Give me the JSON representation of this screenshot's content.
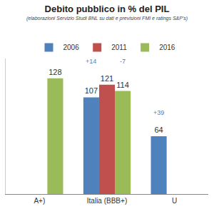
{
  "chart_data": {
    "type": "bar",
    "title": "Debito pubblico in % del PIL",
    "subtitle": "(elaborazioni Servizio Studi BNL su dati e previsioni FMI e ratings S&P's)",
    "categories": [
      "A+)",
      "Italia (BBB+)",
      "U"
    ],
    "series": [
      {
        "name": "2006",
        "color": "#4F81BD",
        "values": [
          null,
          107,
          64
        ]
      },
      {
        "name": "2011",
        "color": "#C0504D",
        "values": [
          null,
          121,
          null
        ]
      },
      {
        "name": "2016",
        "color": "#9BBB59",
        "values": [
          128,
          114,
          null
        ]
      }
    ],
    "ylim": [
      0,
      150
    ],
    "yticks": [],
    "grid": false,
    "legend": "top",
    "data_labels": true,
    "tick_labels": "x",
    "annotations": [
      {
        "text": "+14",
        "category": "Italia (BBB+)",
        "series": "2006"
      },
      {
        "text": "-7",
        "category": "Italia (BBB+)",
        "series": "2016"
      },
      {
        "text": "+39",
        "category": "U",
        "series": "2006"
      }
    ]
  }
}
